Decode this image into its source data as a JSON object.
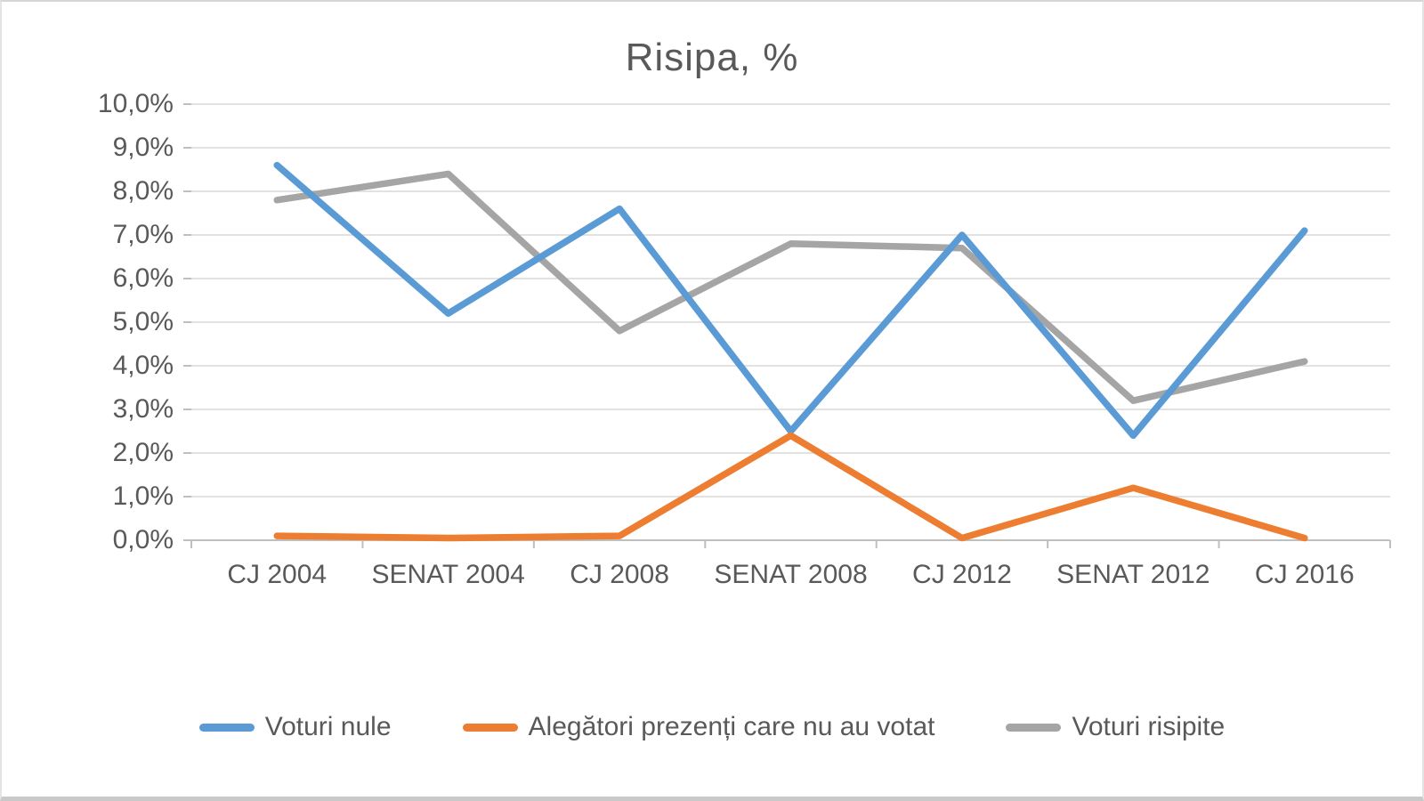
{
  "window": {
    "background": "#ffffff",
    "border_color": "#c9c9c9"
  },
  "chart_data": {
    "type": "line",
    "title": "Risipa, %",
    "categories": [
      "CJ 2004",
      "SENAT 2004",
      "CJ 2008",
      "SENAT 2008",
      "CJ 2012",
      "SENAT 2012",
      "CJ 2016"
    ],
    "series": [
      {
        "name": "Voturi nule",
        "color": "#5B9BD5",
        "values": [
          8.6,
          5.2,
          7.6,
          2.5,
          7.0,
          2.4,
          7.1
        ]
      },
      {
        "name": "Alegători prezenți care nu au votat",
        "color": "#ED7D31",
        "values": [
          0.1,
          0.05,
          0.1,
          2.4,
          0.05,
          1.2,
          0.05
        ]
      },
      {
        "name": "Voturi risipite",
        "color": "#A5A5A5",
        "values": [
          7.8,
          8.4,
          4.8,
          6.8,
          6.7,
          3.2,
          4.1
        ]
      }
    ],
    "y_axis": {
      "unit": "%",
      "min": 0,
      "max": 10,
      "step": 1,
      "tick_labels": [
        "0,0%",
        "1,0%",
        "2,0%",
        "3,0%",
        "4,0%",
        "5,0%",
        "6,0%",
        "7,0%",
        "8,0%",
        "9,0%",
        "10,0%"
      ]
    },
    "grid": true,
    "legend_position": "bottom",
    "colors": {
      "gridline": "#d9d9d9",
      "axis": "#bfbfbf",
      "text": "#595959"
    }
  }
}
